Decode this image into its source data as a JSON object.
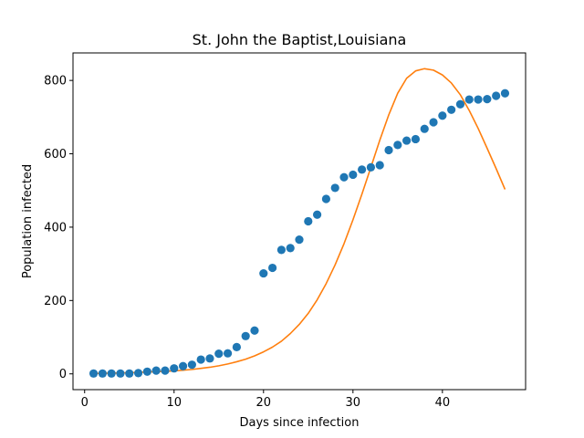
{
  "chart_data": {
    "type": "scatter",
    "title": "St. John the Baptist,Louisiana",
    "xlabel": "Days since infection",
    "ylabel": "Population infected",
    "xlim": [
      -1.3,
      49.3
    ],
    "ylim": [
      -43,
      875
    ],
    "xticks": [
      0,
      10,
      20,
      30,
      40
    ],
    "yticks": [
      0,
      200,
      400,
      600,
      800
    ],
    "grid": false,
    "series": [
      {
        "kind": "scatter",
        "color": "#1f77b4",
        "x": [
          1,
          2,
          3,
          4,
          5,
          6,
          7,
          8,
          9,
          10,
          11,
          12,
          13,
          14,
          15,
          16,
          17,
          18,
          19,
          20,
          21,
          22,
          23,
          24,
          25,
          26,
          27,
          28,
          29,
          30,
          31,
          32,
          33,
          34,
          35,
          36,
          37,
          38,
          39,
          40,
          41,
          42,
          43,
          44,
          45,
          46,
          47
        ],
        "y": [
          1,
          1,
          1,
          1,
          1,
          2,
          6,
          9,
          9,
          15,
          21,
          25,
          39,
          42,
          55,
          56,
          73,
          103,
          118,
          274,
          289,
          338,
          343,
          366,
          416,
          434,
          477,
          507,
          536,
          543,
          557,
          563,
          569,
          610,
          624,
          636,
          640,
          668,
          686,
          704,
          720,
          735,
          748,
          748,
          749,
          758,
          765
        ]
      },
      {
        "kind": "line",
        "color": "#ff7f0e",
        "x": [
          1,
          2,
          3,
          4,
          5,
          6,
          7,
          8,
          9,
          10,
          11,
          12,
          13,
          14,
          15,
          16,
          17,
          18,
          19,
          20,
          21,
          22,
          23,
          24,
          25,
          26,
          27,
          28,
          29,
          30,
          31,
          32,
          33,
          34,
          35,
          36,
          37,
          38,
          39,
          40,
          41,
          42,
          43,
          44,
          45,
          46,
          47
        ],
        "y": [
          1,
          1.5,
          2,
          2.5,
          3,
          4,
          5,
          6,
          7,
          8,
          10,
          12,
          15,
          18,
          22,
          27,
          33,
          40,
          49,
          60,
          73,
          89,
          110,
          135,
          165,
          202,
          246,
          297,
          355,
          420,
          490,
          563,
          637,
          706,
          765,
          806,
          826,
          832,
          828,
          815,
          793,
          761,
          718,
          669,
          615,
          560,
          503
        ]
      }
    ]
  }
}
